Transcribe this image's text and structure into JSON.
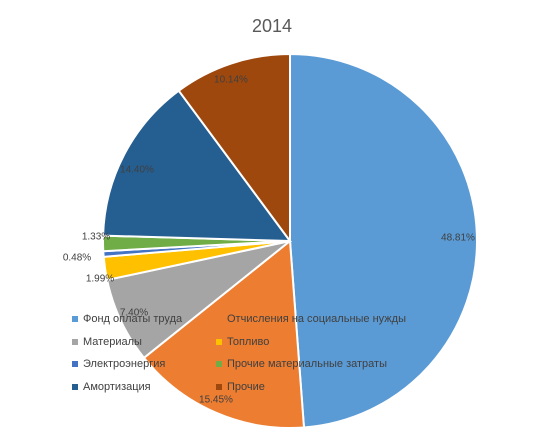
{
  "chart_data": {
    "type": "pie",
    "title": "2014",
    "legend_position": "overlay-bottom-left",
    "slices": [
      {
        "label": "Фонд оплаты труда",
        "value": 48.81,
        "display": "48.81%",
        "color": "#5b9bd5"
      },
      {
        "label": "Отчисления на социальные нужды",
        "value": 15.45,
        "display": "15.45%",
        "color": "#ed7d31"
      },
      {
        "label": "Материалы",
        "value": 7.4,
        "display": "7.40%",
        "color": "#a5a5a5"
      },
      {
        "label": "Топливо",
        "value": 1.99,
        "display": "1.99%",
        "color": "#ffc000"
      },
      {
        "label": "Электроэнергия",
        "value": 0.48,
        "display": "0.48%",
        "color": "#4472c4"
      },
      {
        "label": "Прочие материальные затраты",
        "value": 1.33,
        "display": "1.33%",
        "color": "#70ad47"
      },
      {
        "label": "Амортизация",
        "value": 14.4,
        "display": "14.40%",
        "color": "#255e91"
      },
      {
        "label": "Прочие",
        "value": 10.14,
        "display": "10.14%",
        "color": "#9e480e"
      }
    ]
  }
}
